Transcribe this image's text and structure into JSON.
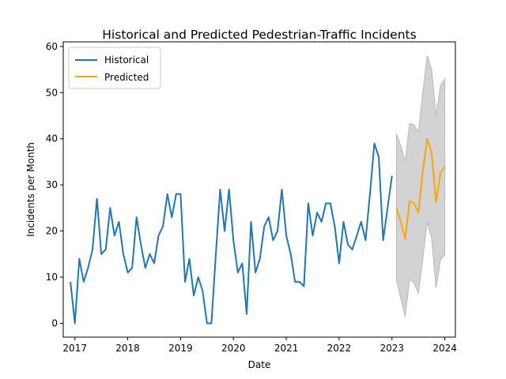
{
  "chart_data": {
    "type": "line",
    "title": "Historical and Predicted Pedestrian-Traffic Incidents",
    "xlabel": "Date",
    "ylabel": "Incidents per Month",
    "xlim": [
      2016.78,
      2024.2
    ],
    "ylim": [
      -3,
      61
    ],
    "x_ticks": [
      "2017",
      "2018",
      "2019",
      "2020",
      "2021",
      "2022",
      "2023",
      "2024"
    ],
    "y_ticks": [
      "0",
      "10",
      "20",
      "30",
      "40",
      "50",
      "60"
    ],
    "grid": false,
    "legend_placement": "top-left",
    "series": [
      {
        "name": "Historical",
        "color": "#1f77b4",
        "start": "2016-12",
        "frequency": "monthly",
        "values": [
          9,
          0,
          14,
          9,
          12,
          16,
          27,
          15,
          16,
          25,
          19,
          22,
          15,
          11,
          12,
          23,
          17,
          12,
          15,
          13,
          19,
          21,
          28,
          23,
          28,
          28,
          9,
          14,
          6,
          10,
          7,
          0,
          0,
          15,
          29,
          20,
          29,
          18,
          11,
          13,
          2,
          22,
          11,
          14,
          21,
          23,
          18,
          20,
          29,
          19,
          15,
          9,
          9,
          8,
          26,
          19,
          24,
          22,
          26,
          26,
          21,
          13,
          22,
          17,
          16,
          19,
          22,
          18,
          28,
          39,
          36,
          18,
          25,
          32
        ]
      },
      {
        "name": "Predicted",
        "color": "#ffa500",
        "start": "2023-02",
        "frequency": "monthly",
        "values": [
          25,
          22,
          18.3,
          26.5,
          26,
          24,
          33,
          40,
          37,
          26.3,
          32.5,
          34
        ],
        "upper": [
          41,
          38.5,
          35,
          43.3,
          43,
          41.5,
          50,
          58,
          55,
          45,
          51.5,
          53
        ],
        "lower": [
          9.3,
          5.5,
          1.5,
          9.6,
          8.8,
          6.5,
          14,
          22,
          18.5,
          7.7,
          13.8,
          14.8
        ],
        "interval_color": "#d3d3d3"
      }
    ]
  }
}
